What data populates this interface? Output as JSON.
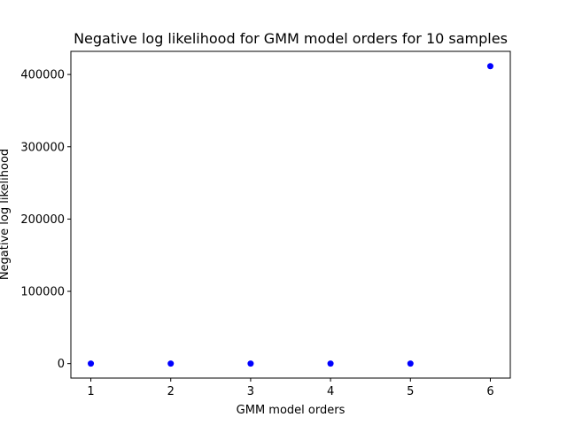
{
  "chart_data": {
    "type": "scatter",
    "title": "Negative log likelihood for GMM model orders for 10 samples",
    "xlabel": "GMM model orders",
    "ylabel": "Negative log likelihood",
    "x": [
      1,
      2,
      3,
      4,
      5,
      6
    ],
    "y": [
      25,
      30,
      35,
      40,
      60,
      411500
    ],
    "xlim": [
      0.75,
      6.25
    ],
    "ylim": [
      -20000,
      432000
    ],
    "xticks": [
      1,
      2,
      3,
      4,
      5,
      6
    ],
    "yticks": [
      0,
      100000,
      200000,
      300000,
      400000
    ],
    "marker_color": "#0000ff",
    "grid": false,
    "legend": "none"
  }
}
